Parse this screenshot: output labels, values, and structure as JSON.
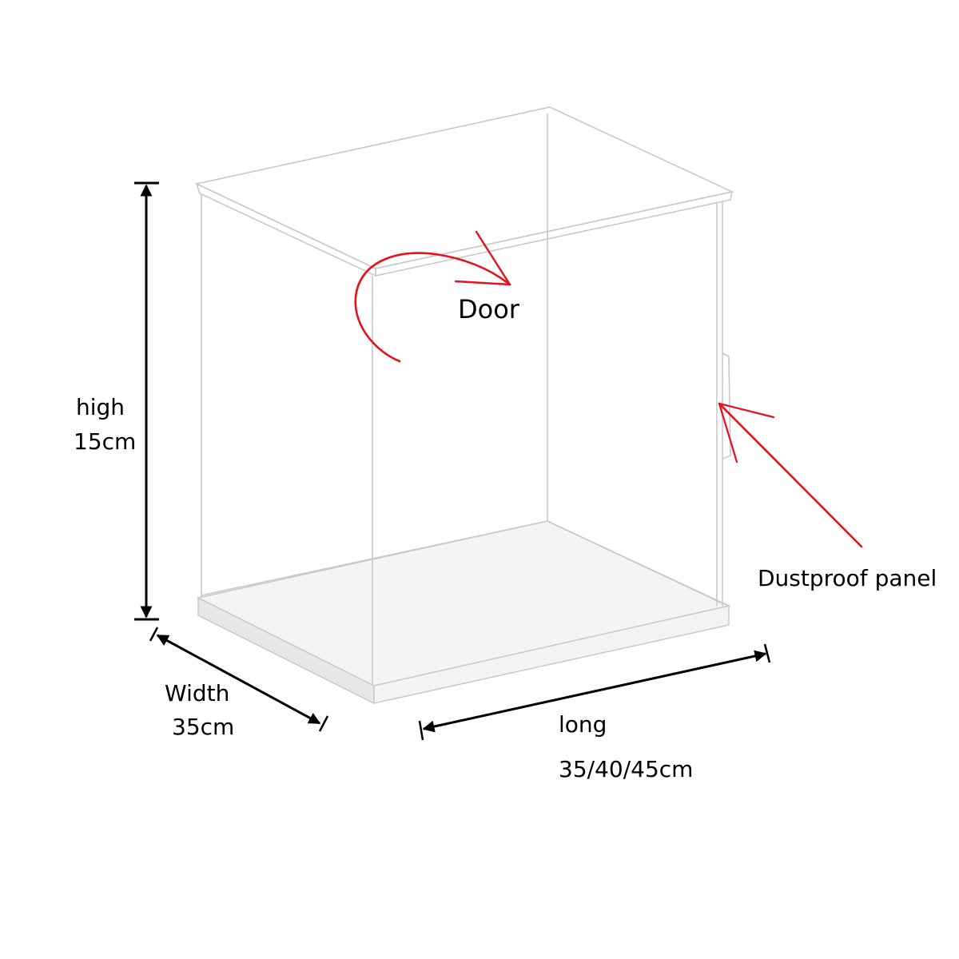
{
  "labels": {
    "door": "Door",
    "dustproof_panel": "Dustproof panel",
    "height": {
      "name": "high",
      "value": "15cm"
    },
    "width": {
      "name": "Width",
      "value": "35cm"
    },
    "length": {
      "name": "long",
      "value": "35/40/45cm"
    }
  },
  "colors": {
    "outline": "#c9c9c9",
    "annotation_arrow": "#e8101a",
    "dimension_line": "#000000",
    "base_front": "#e7e7e7",
    "base_right": "#f3f3f3",
    "floor": "#f4f4f4"
  }
}
